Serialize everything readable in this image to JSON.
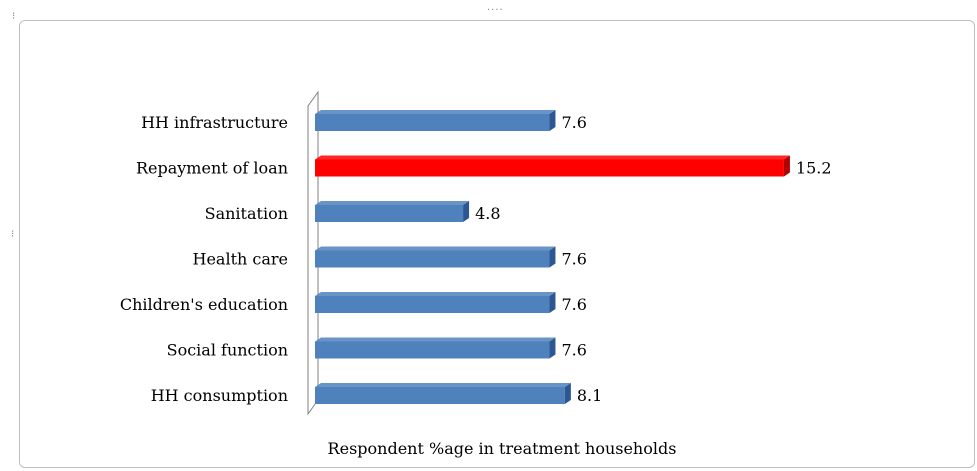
{
  "chart_data": {
    "type": "bar",
    "orientation": "horizontal",
    "categories": [
      "HH infrastructure",
      "Repayment of loan",
      "Sanitation",
      "Health care",
      "Children's education",
      "Social function",
      "HH consumption"
    ],
    "values": [
      7.6,
      15.2,
      4.8,
      7.6,
      7.6,
      7.6,
      8.1
    ],
    "highlight_index": 1,
    "xlabel": "Respondent %age in treatment  households",
    "xlim": [
      0,
      16
    ],
    "grid": false,
    "legend": "none",
    "colors": {
      "bar": "#4f81bd",
      "bar_dark": "#2c5792",
      "highlight": "#ff0000",
      "highlight_dark": "#b00000"
    }
  }
}
